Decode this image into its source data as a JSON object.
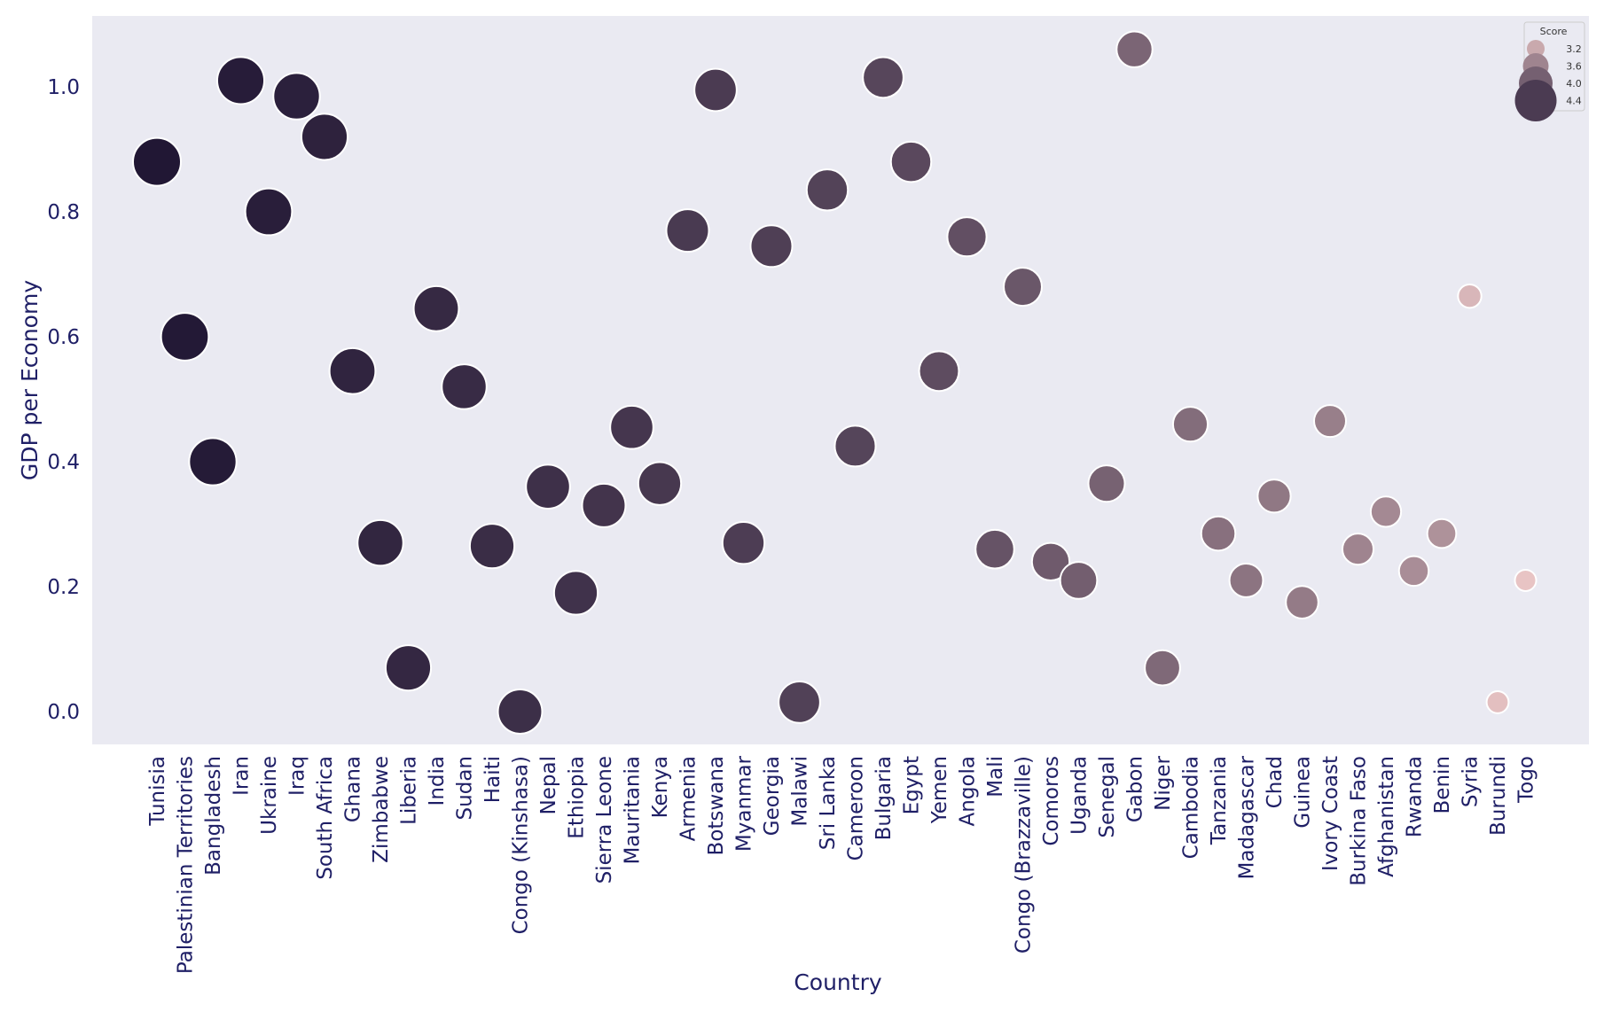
{
  "chart_data": {
    "type": "scatter",
    "xlabel": "Country",
    "ylabel": "GDP per Economy",
    "ylim": [
      -0.05,
      1.1
    ],
    "yticks": [
      "0.0",
      "0.2",
      "0.4",
      "0.6",
      "0.8",
      "1.0"
    ],
    "grid": false,
    "legend": {
      "title": "Score",
      "placement": "top-right",
      "entries": [
        "3.2",
        "3.6",
        "4.0",
        "4.4"
      ]
    },
    "points": [
      {
        "country": "Tunisia",
        "gdp": 0.88,
        "score": 4.8
      },
      {
        "country": "Palestinian Territories",
        "gdp": 0.6,
        "score": 4.78
      },
      {
        "country": "Bangladesh",
        "gdp": 0.4,
        "score": 4.76
      },
      {
        "country": "Iran",
        "gdp": 1.01,
        "score": 4.74
      },
      {
        "country": "Ukraine",
        "gdp": 0.8,
        "score": 4.72
      },
      {
        "country": "Iraq",
        "gdp": 0.985,
        "score": 4.7
      },
      {
        "country": "South Africa",
        "gdp": 0.92,
        "score": 4.68
      },
      {
        "country": "Ghana",
        "gdp": 0.545,
        "score": 4.66
      },
      {
        "country": "Zimbabwe",
        "gdp": 0.27,
        "score": 4.64
      },
      {
        "country": "Liberia",
        "gdp": 0.07,
        "score": 4.62
      },
      {
        "country": "India",
        "gdp": 0.645,
        "score": 4.6
      },
      {
        "country": "Sudan",
        "gdp": 0.52,
        "score": 4.58
      },
      {
        "country": "Haiti",
        "gdp": 0.265,
        "score": 4.56
      },
      {
        "country": "Congo (Kinshasa)",
        "gdp": 0.0,
        "score": 4.54
      },
      {
        "country": "Nepal",
        "gdp": 0.36,
        "score": 4.52
      },
      {
        "country": "Ethiopia",
        "gdp": 0.19,
        "score": 4.5
      },
      {
        "country": "Sierra Leone",
        "gdp": 0.33,
        "score": 4.48
      },
      {
        "country": "Mauritania",
        "gdp": 0.455,
        "score": 4.46
      },
      {
        "country": "Kenya",
        "gdp": 0.365,
        "score": 4.44
      },
      {
        "country": "Armenia",
        "gdp": 0.77,
        "score": 4.42
      },
      {
        "country": "Botswana",
        "gdp": 0.995,
        "score": 4.4
      },
      {
        "country": "Myanmar",
        "gdp": 0.27,
        "score": 4.38
      },
      {
        "country": "Georgia",
        "gdp": 0.745,
        "score": 4.36
      },
      {
        "country": "Malawi",
        "gdp": 0.015,
        "score": 4.34
      },
      {
        "country": "Sri Lanka",
        "gdp": 0.835,
        "score": 4.32
      },
      {
        "country": "Cameroon",
        "gdp": 0.425,
        "score": 4.3
      },
      {
        "country": "Bulgaria",
        "gdp": 1.015,
        "score": 4.28
      },
      {
        "country": "Egypt",
        "gdp": 0.88,
        "score": 4.26
      },
      {
        "country": "Yemen",
        "gdp": 0.545,
        "score": 4.22
      },
      {
        "country": "Angola",
        "gdp": 0.76,
        "score": 4.18
      },
      {
        "country": "Mali",
        "gdp": 0.26,
        "score": 4.14
      },
      {
        "country": "Congo (Brazzaville)",
        "gdp": 0.68,
        "score": 4.1
      },
      {
        "country": "Comoros",
        "gdp": 0.24,
        "score": 4.06
      },
      {
        "country": "Uganda",
        "gdp": 0.21,
        "score": 4.02
      },
      {
        "country": "Senegal",
        "gdp": 0.365,
        "score": 3.98
      },
      {
        "country": "Gabon",
        "gdp": 1.06,
        "score": 3.94
      },
      {
        "country": "Niger",
        "gdp": 0.07,
        "score": 3.9
      },
      {
        "country": "Cambodia",
        "gdp": 0.46,
        "score": 3.86
      },
      {
        "country": "Tanzania",
        "gdp": 0.285,
        "score": 3.82
      },
      {
        "country": "Madagascar",
        "gdp": 0.21,
        "score": 3.78
      },
      {
        "country": "Chad",
        "gdp": 0.345,
        "score": 3.74
      },
      {
        "country": "Guinea",
        "gdp": 0.175,
        "score": 3.7
      },
      {
        "country": "Ivory Coast",
        "gdp": 0.465,
        "score": 3.66
      },
      {
        "country": "Burkina Faso",
        "gdp": 0.26,
        "score": 3.6
      },
      {
        "country": "Afghanistan",
        "gdp": 0.32,
        "score": 3.55
      },
      {
        "country": "Rwanda",
        "gdp": 0.225,
        "score": 3.5
      },
      {
        "country": "Benin",
        "gdp": 0.285,
        "score": 3.45
      },
      {
        "country": "Syria",
        "gdp": 0.665,
        "score": 3.05
      },
      {
        "country": "Burundi",
        "gdp": 0.015,
        "score": 2.95
      },
      {
        "country": "Togo",
        "gdp": 0.21,
        "score": 2.9
      }
    ]
  }
}
